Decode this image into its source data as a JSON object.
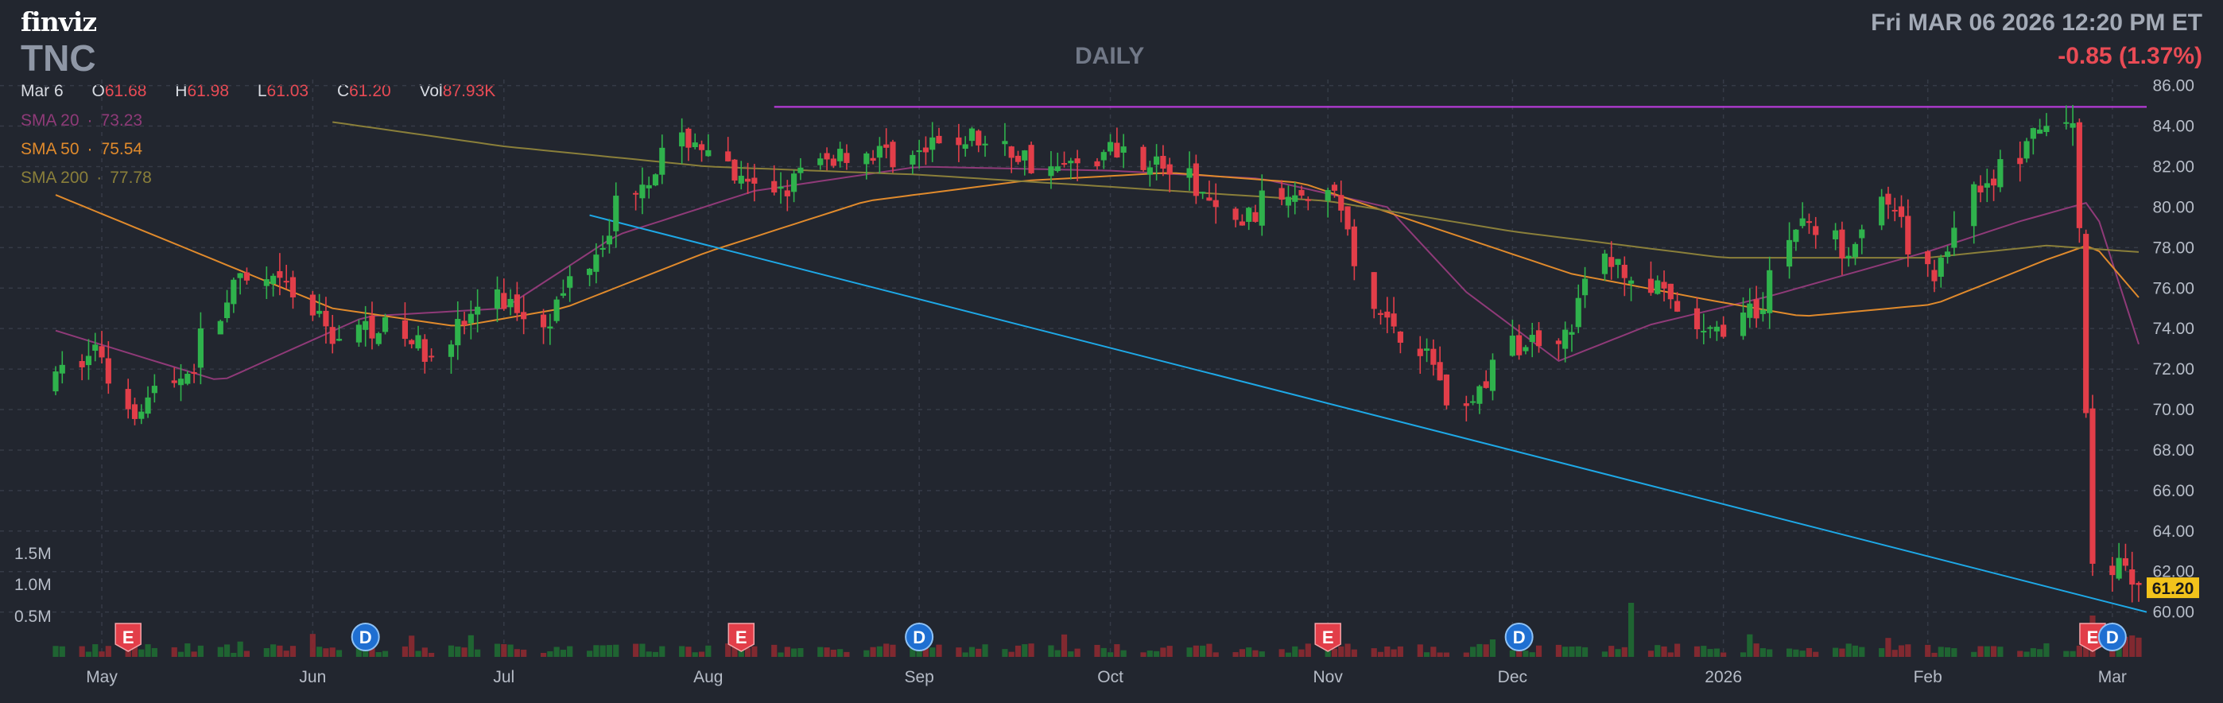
{
  "header": {
    "logo": "finviz",
    "ticker": "TNC",
    "period": "DAILY",
    "datetime": "Fri MAR 06 2026 12:20 PM ET",
    "change": "-0.85 (1.37%)"
  },
  "ohlc": {
    "date": "Mar 6",
    "o_label": "O",
    "o": "61.68",
    "h_label": "H",
    "h": "61.98",
    "l_label": "L",
    "l": "61.03",
    "c_label": "C",
    "c": "61.20",
    "vol_label": "Vol",
    "vol": "87.93K"
  },
  "sma": [
    {
      "label": "SMA 20",
      "sep": "·",
      "value": "73.23",
      "color": "#8f3a78"
    },
    {
      "label": "SMA 50",
      "sep": "·",
      "value": "75.54",
      "color": "#e08a2c"
    },
    {
      "label": "SMA 200",
      "sep": "·",
      "value": "77.78",
      "color": "#8a7f3a"
    }
  ],
  "colors": {
    "up": "#2fb24c",
    "down": "#e23e49",
    "sma20": "#8f3a78",
    "sma50": "#e08a2c",
    "sma200": "#8a7f3a",
    "resistance": "#b53ad6",
    "trendline": "#1ea8e6",
    "background": "#22262f",
    "grid": "#363b47",
    "last_price_bg": "#f2c31b"
  },
  "chart_data": {
    "type": "candlestick",
    "ticker": "TNC",
    "y_axis": {
      "min": 59.2,
      "max": 86.3,
      "ticks": [
        "86.00",
        "84.00",
        "82.00",
        "80.00",
        "78.00",
        "76.00",
        "74.00",
        "72.00",
        "70.00",
        "68.00",
        "66.00",
        "64.00",
        "62.00",
        "60.00"
      ],
      "position": "right"
    },
    "x_axis": {
      "start": "2025-04-24",
      "end": "2026-03-06",
      "ticks": [
        {
          "label": "May",
          "date": "2025-05-01"
        },
        {
          "label": "Jun",
          "date": "2025-06-02"
        },
        {
          "label": "Jul",
          "date": "2025-07-01"
        },
        {
          "label": "Aug",
          "date": "2025-08-01"
        },
        {
          "label": "Sep",
          "date": "2025-09-02"
        },
        {
          "label": "Oct",
          "date": "2025-10-01"
        },
        {
          "label": "Nov",
          "date": "2025-11-03"
        },
        {
          "label": "Dec",
          "date": "2025-12-01"
        },
        {
          "label": "2026",
          "date": "2026-01-02"
        },
        {
          "label": "Feb",
          "date": "2026-02-02"
        },
        {
          "label": "Mar",
          "date": "2026-03-02"
        }
      ]
    },
    "volume_axis": {
      "ticks": [
        "1.5M",
        "1.0M",
        "0.5M"
      ],
      "values": [
        1500000,
        1000000,
        500000
      ]
    },
    "grid": true,
    "last_price": "61.20",
    "series": [
      {
        "name": "SMA 20",
        "value": 73.23
      },
      {
        "name": "SMA 50",
        "value": 75.54
      },
      {
        "name": "SMA 200",
        "value": 77.78
      }
    ],
    "lines": {
      "resistance": {
        "price": 84.95,
        "from": "2025-08-11",
        "to": "2026-03-06"
      },
      "trendline": {
        "from": {
          "date": "2025-07-14",
          "price": 79.6
        },
        "to": {
          "date": "2026-03-06",
          "price": 60.0
        }
      }
    },
    "events": [
      {
        "label": "E",
        "date": "2025-05-05"
      },
      {
        "label": "D",
        "date": "2025-06-10"
      },
      {
        "label": "E",
        "date": "2025-08-06"
      },
      {
        "label": "D",
        "date": "2025-09-02"
      },
      {
        "label": "E",
        "date": "2025-11-03"
      },
      {
        "label": "D",
        "date": "2025-12-02"
      },
      {
        "label": "E",
        "date": "2026-02-27"
      },
      {
        "label": "D",
        "date": "2026-03-02"
      }
    ],
    "candles_anchor": [
      [
        "2025-04-24",
        71.2
      ],
      [
        "2025-05-01",
        73.1
      ],
      [
        "2025-05-06",
        70.0
      ],
      [
        "2025-05-15",
        72.0
      ],
      [
        "2025-05-22",
        76.2
      ],
      [
        "2025-05-30",
        76.0
      ],
      [
        "2025-06-06",
        73.5
      ],
      [
        "2025-06-13",
        74.3
      ],
      [
        "2025-06-20",
        72.8
      ],
      [
        "2025-06-30",
        75.5
      ],
      [
        "2025-07-08",
        74.5
      ],
      [
        "2025-07-14",
        77.2
      ],
      [
        "2025-07-21",
        81.0
      ],
      [
        "2025-07-30",
        83.5
      ],
      [
        "2025-08-08",
        80.6
      ],
      [
        "2025-08-15",
        81.3
      ],
      [
        "2025-08-22",
        82.8
      ],
      [
        "2025-09-02",
        82.5
      ],
      [
        "2025-09-10",
        83.5
      ],
      [
        "2025-09-24",
        81.8
      ],
      [
        "2025-10-03",
        83.0
      ],
      [
        "2025-10-13",
        81.5
      ],
      [
        "2025-10-20",
        79.0
      ],
      [
        "2025-10-30",
        81.2
      ],
      [
        "2025-11-05",
        80.5
      ],
      [
        "2025-11-10",
        75.0
      ],
      [
        "2025-11-17",
        73.5
      ],
      [
        "2025-11-24",
        69.8
      ],
      [
        "2025-12-01",
        73.0
      ],
      [
        "2025-12-10",
        74.0
      ],
      [
        "2025-12-15",
        77.5
      ],
      [
        "2025-12-22",
        76.2
      ],
      [
        "2025-12-31",
        73.5
      ],
      [
        "2026-01-08",
        75.0
      ],
      [
        "2026-01-14",
        79.5
      ],
      [
        "2026-01-21",
        78.0
      ],
      [
        "2026-01-27",
        80.2
      ],
      [
        "2026-02-03",
        76.5
      ],
      [
        "2026-02-10",
        81.0
      ],
      [
        "2026-02-17",
        82.5
      ],
      [
        "2026-02-20",
        84.2
      ],
      [
        "2026-02-25",
        83.8
      ],
      [
        "2026-02-27",
        65.0
      ],
      [
        "2026-03-02",
        61.0
      ],
      [
        "2026-03-04",
        63.0
      ],
      [
        "2026-03-06",
        61.2
      ]
    ],
    "sma_anchors": {
      "SMA 20": [
        [
          "2025-04-24",
          73.9
        ],
        [
          "2025-05-19",
          71.4
        ],
        [
          "2025-06-10",
          74.6
        ],
        [
          "2025-07-01",
          75.0
        ],
        [
          "2025-07-18",
          78.6
        ],
        [
          "2025-08-08",
          80.8
        ],
        [
          "2025-09-02",
          82.0
        ],
        [
          "2025-10-01",
          81.8
        ],
        [
          "2025-10-24",
          81.4
        ],
        [
          "2025-11-12",
          80.0
        ],
        [
          "2025-11-24",
          75.8
        ],
        [
          "2025-12-08",
          72.4
        ],
        [
          "2025-12-22",
          74.2
        ],
        [
          "2026-01-09",
          75.6
        ],
        [
          "2026-02-02",
          77.8
        ],
        [
          "2026-02-16",
          79.3
        ],
        [
          "2026-02-27",
          80.3
        ],
        [
          "2026-03-06",
          73.23
        ]
      ],
      "SMA 50": [
        [
          "2025-04-24",
          80.6
        ],
        [
          "2025-05-15",
          77.8
        ],
        [
          "2025-06-05",
          75.0
        ],
        [
          "2025-06-24",
          74.1
        ],
        [
          "2025-07-10",
          75.0
        ],
        [
          "2025-08-01",
          77.8
        ],
        [
          "2025-08-25",
          80.3
        ],
        [
          "2025-09-18",
          81.3
        ],
        [
          "2025-10-10",
          81.7
        ],
        [
          "2025-10-30",
          81.2
        ],
        [
          "2025-11-17",
          79.2
        ],
        [
          "2025-12-10",
          76.7
        ],
        [
          "2025-12-31",
          75.4
        ],
        [
          "2026-01-14",
          74.6
        ],
        [
          "2026-02-03",
          75.2
        ],
        [
          "2026-02-20",
          77.4
        ],
        [
          "2026-02-27",
          78.2
        ],
        [
          "2026-03-06",
          75.54
        ]
      ],
      "SMA 200": [
        [
          "2025-06-05",
          84.2
        ],
        [
          "2025-07-01",
          83.0
        ],
        [
          "2025-08-01",
          82.0
        ],
        [
          "2025-09-02",
          81.6
        ],
        [
          "2025-10-01",
          81.0
        ],
        [
          "2025-11-03",
          80.3
        ],
        [
          "2025-12-01",
          78.8
        ],
        [
          "2026-01-02",
          77.5
        ],
        [
          "2026-02-02",
          77.5
        ],
        [
          "2026-02-20",
          78.1
        ],
        [
          "2026-03-06",
          77.78
        ]
      ]
    }
  }
}
